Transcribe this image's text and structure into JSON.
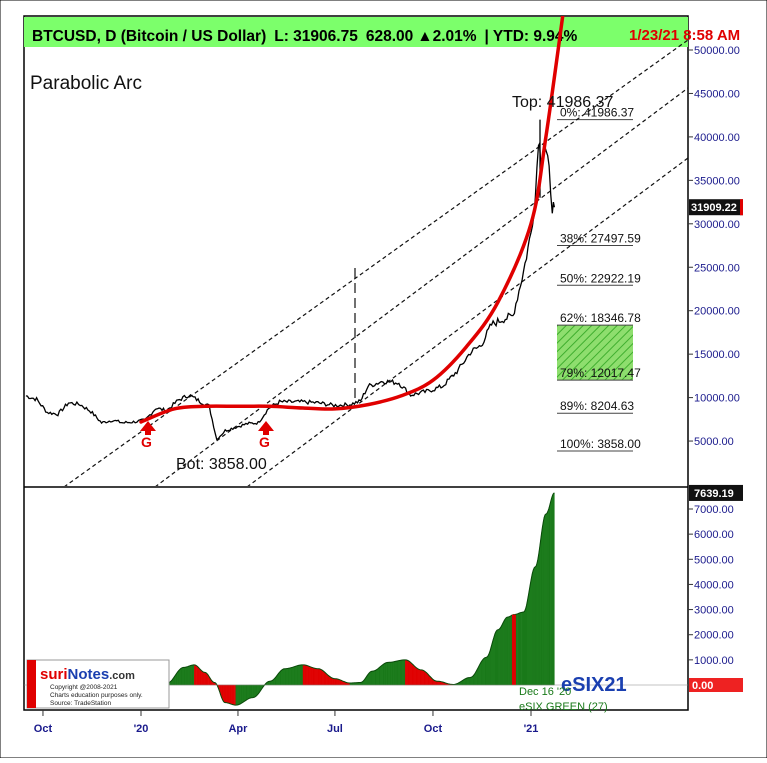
{
  "header": {
    "title": "BTCUSD, D (Bitcoin / US Dollar)",
    "last_label": "L: 31906.75",
    "change": "628.00",
    "change_pct": "▲2.01%",
    "ytd": "| YTD: 9.94%",
    "timestamp": "1/23/21 8:58 AM",
    "header_bg": "#7cff6b",
    "timestamp_color": "#e00000"
  },
  "annotations": {
    "pattern_name": "Parabolic Arc",
    "top_label": "Top: 41986.37",
    "bottom_label": "Bot: 3858.00",
    "signal_g": "G"
  },
  "chart_data": [
    {
      "type": "line",
      "name": "price",
      "x": [
        "2019-09-15",
        "2019-09-25",
        "2019-10-05",
        "2019-10-15",
        "2019-10-25",
        "2019-11-05",
        "2019-11-15",
        "2019-11-25",
        "2019-12-05",
        "2019-12-15",
        "2019-12-25",
        "2020-01-05",
        "2020-01-15",
        "2020-01-25",
        "2020-02-05",
        "2020-02-15",
        "2020-02-25",
        "2020-03-05",
        "2020-03-12",
        "2020-03-20",
        "2020-03-30",
        "2020-04-10",
        "2020-04-20",
        "2020-04-30",
        "2020-05-10",
        "2020-05-20",
        "2020-06-01",
        "2020-06-15",
        "2020-06-30",
        "2020-07-15",
        "2020-07-25",
        "2020-08-01",
        "2020-08-15",
        "2020-08-30",
        "2020-09-10",
        "2020-09-25",
        "2020-10-10",
        "2020-10-25",
        "2020-11-05",
        "2020-11-15",
        "2020-11-25",
        "2020-12-05",
        "2020-12-15",
        "2020-12-25",
        "2021-01-01",
        "2021-01-05",
        "2021-01-08",
        "2021-01-10",
        "2021-01-14",
        "2021-01-18",
        "2021-01-21",
        "2021-01-23"
      ],
      "values": [
        10200,
        9800,
        8300,
        8100,
        9400,
        9200,
        8400,
        7100,
        7400,
        7100,
        7200,
        7400,
        8800,
        8500,
        9700,
        10300,
        9600,
        9000,
        5200,
        6200,
        6600,
        7000,
        7100,
        8800,
        9500,
        9500,
        9500,
        9400,
        9100,
        9200,
        9600,
        11300,
        11900,
        11700,
        10300,
        10700,
        11300,
        13200,
        15200,
        16000,
        18400,
        19000,
        19400,
        24500,
        29000,
        33000,
        40000,
        38000,
        39000,
        36000,
        32000,
        31909
      ]
    },
    {
      "type": "line",
      "name": "parabolic-arc",
      "x": [
        "2020-01-01",
        "2020-02-01",
        "2020-03-01",
        "2020-04-01",
        "2020-05-01",
        "2020-06-01",
        "2020-07-01",
        "2020-08-01",
        "2020-09-01",
        "2020-10-01",
        "2020-11-01",
        "2020-12-01",
        "2021-01-01",
        "2021-01-15",
        "2021-02-01"
      ],
      "values": [
        7200,
        8700,
        9000,
        9000,
        9000,
        8800,
        8700,
        9200,
        10200,
        12000,
        15800,
        21000,
        30000,
        40000,
        55000
      ]
    },
    {
      "type": "table",
      "name": "fibonacci-levels",
      "levels": [
        {
          "label": "0%: 41986.37",
          "value": 41986.37
        },
        {
          "label": "38%: 27497.59",
          "value": 27497.59
        },
        {
          "label": "50%: 22922.19",
          "value": 22922.19
        },
        {
          "label": "62%: 18346.78",
          "value": 18346.78
        },
        {
          "label": "79%: 12017.47",
          "value": 12017.47
        },
        {
          "label": "89%: 8204.63",
          "value": 8204.63
        },
        {
          "label": "100%: 3858.00",
          "value": 3858.0
        }
      ]
    },
    {
      "type": "area",
      "name": "esix-indicator",
      "x": [
        "2019-12-20",
        "2020-01-10",
        "2020-01-25",
        "2020-02-10",
        "2020-02-20",
        "2020-03-01",
        "2020-03-10",
        "2020-03-20",
        "2020-03-30",
        "2020-04-15",
        "2020-05-01",
        "2020-05-15",
        "2020-06-01",
        "2020-06-15",
        "2020-07-01",
        "2020-07-15",
        "2020-07-25",
        "2020-08-05",
        "2020-08-20",
        "2020-09-05",
        "2020-09-20",
        "2020-10-05",
        "2020-10-20",
        "2020-11-05",
        "2020-11-20",
        "2020-12-01",
        "2020-12-10",
        "2020-12-16",
        "2020-12-25",
        "2021-01-05",
        "2021-01-15",
        "2021-01-23"
      ],
      "values": [
        0,
        -80,
        50,
        700,
        800,
        500,
        100,
        -700,
        -800,
        -500,
        150,
        650,
        800,
        650,
        250,
        80,
        100,
        550,
        900,
        1000,
        600,
        150,
        20,
        300,
        1100,
        2200,
        2700,
        2800,
        2900,
        4700,
        6800,
        7639
      ],
      "ylim": [
        -1000,
        8000
      ],
      "yticks": [
        "7000.00",
        "6000.00",
        "5000.00",
        "4000.00",
        "3000.00",
        "2000.00",
        "1000.00"
      ],
      "last_value_label": "7639.19",
      "zero_label": "0.00",
      "indicator_name": "eSIX21",
      "signal_date": "Dec 16 '20",
      "signal_text": "eSIX GREEN (27)"
    }
  ],
  "price_axis": {
    "ylim": [
      0,
      52000
    ],
    "yticks": [
      "50000.00",
      "45000.00",
      "40000.00",
      "35000.00",
      "30000.00",
      "25000.00",
      "20000.00",
      "15000.00",
      "10000.00",
      "5000.00"
    ],
    "last_price_label": "31909.22"
  },
  "time_axis": {
    "ticks": [
      {
        "label": "Oct",
        "date": "2019-10-01"
      },
      {
        "label": "'20",
        "date": "2020-01-01"
      },
      {
        "label": "Apr",
        "date": "2020-04-01"
      },
      {
        "label": "Jul",
        "date": "2020-07-01"
      },
      {
        "label": "Oct",
        "date": "2020-10-01"
      },
      {
        "label": "'21",
        "date": "2021-01-01"
      }
    ]
  },
  "logo": {
    "brand_a": "suri",
    "brand_b": "Notes",
    "brand_c": ".com",
    "line1": "Copyright @2008-2021",
    "line2": "Charts education purposes only.",
    "line3": "Source: TradeStation"
  },
  "colors": {
    "arc": "#e00000",
    "price": "#000000",
    "esix_green": "#1a7a1a",
    "esix_red": "#e00000",
    "fib_zone": "#7dd35f",
    "axis_text": "#1a1a8c"
  }
}
